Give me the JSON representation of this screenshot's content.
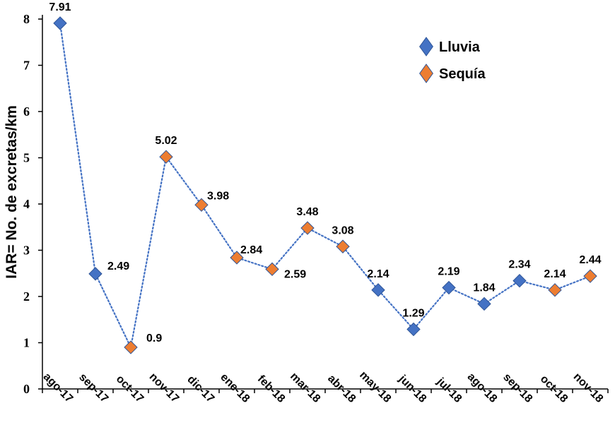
{
  "chart_data": {
    "type": "line",
    "ylabel": "IAR= No. de excretas/km",
    "xlabel": "",
    "ylim": [
      0,
      8
    ],
    "yticks": [
      "0",
      "1",
      "2",
      "3",
      "4",
      "5",
      "6",
      "7",
      "8"
    ],
    "categories": [
      "ago-17",
      "sep-17",
      "oct-17",
      "nov-17",
      "dic-17",
      "ene-18",
      "feb-18",
      "mar-18",
      "abr-18",
      "may-18",
      "jun-18",
      "jul-18",
      "ago-18",
      "sep-18",
      "oct-18",
      "nov-18"
    ],
    "values": [
      7.91,
      2.49,
      0.9,
      5.02,
      3.98,
      2.84,
      2.59,
      3.48,
      3.08,
      2.14,
      1.29,
      2.19,
      1.84,
      2.34,
      2.14,
      2.44
    ],
    "labels": [
      "7.91",
      "2.49",
      "0.9",
      "5.02",
      "3.98",
      "2.84",
      "2.59",
      "3.48",
      "3.08",
      "2.14",
      "1.29",
      "2.19",
      "1.84",
      "2.34",
      "2.14",
      "2.44"
    ],
    "season": [
      "Lluvia",
      "Lluvia",
      "Sequía",
      "Sequía",
      "Sequía",
      "Sequía",
      "Sequía",
      "Sequía",
      "Sequía",
      "Lluvia",
      "Lluvia",
      "Lluvia",
      "Lluvia",
      "Lluvia",
      "Sequía",
      "Sequía"
    ],
    "legend": [
      {
        "name": "Lluvia",
        "color": "#4472C4"
      },
      {
        "name": "Sequía",
        "color": "#ED7D31"
      }
    ],
    "legend_position": "top-right",
    "line_style": "dotted",
    "line_color": "#4472C4",
    "grid": false
  }
}
